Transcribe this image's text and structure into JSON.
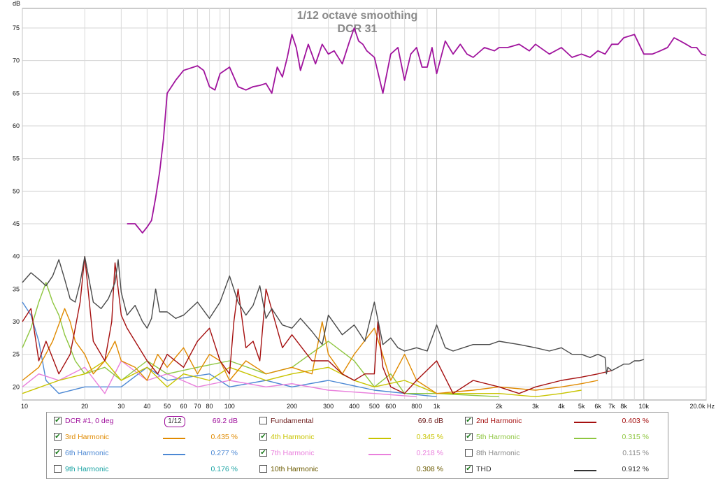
{
  "chart_data": {
    "type": "line",
    "title": "1/12 octave smoothing",
    "subtitle": "DCR 31",
    "ylabel": "dB",
    "xscale": "log",
    "xlim": [
      10,
      20000
    ],
    "ylim": [
      18,
      78
    ],
    "grid": true,
    "y_ticks": [
      "20",
      "25",
      "30",
      "35",
      "40",
      "45",
      "50",
      "55",
      "60",
      "65",
      "70",
      "75"
    ],
    "x_ticks": [
      "10",
      "20",
      "30",
      "40",
      "50",
      "60",
      "70",
      "80",
      "100",
      "200",
      "300",
      "400",
      "500",
      "600",
      "800",
      "1k",
      "2k",
      "3k",
      "4k",
      "5k",
      "6k",
      "7k",
      "8k",
      "10k",
      "20.0k Hz"
    ],
    "x_tick_values": [
      10,
      20,
      30,
      40,
      50,
      60,
      70,
      80,
      100,
      200,
      300,
      400,
      500,
      600,
      800,
      1000,
      2000,
      3000,
      4000,
      5000,
      6000,
      7000,
      8000,
      10000,
      20000
    ],
    "series": [
      {
        "name": "DCR #1, 0 deg",
        "color": "#a0139d",
        "x": [
          10,
          15,
          20,
          25,
          27,
          28,
          29,
          30,
          32,
          35,
          38,
          40,
          42,
          44,
          46,
          48,
          50,
          55,
          60,
          70,
          75,
          80,
          85,
          90,
          100,
          110,
          120,
          130,
          140,
          150,
          160,
          170,
          180,
          190,
          200,
          210,
          220,
          240,
          260,
          280,
          300,
          320,
          350,
          380,
          400,
          420,
          440,
          460,
          500,
          550,
          600,
          650,
          700,
          750,
          800,
          850,
          900,
          950,
          1000,
          1100,
          1200,
          1300,
          1400,
          1500,
          1700,
          1900,
          2000,
          2200,
          2500,
          2800,
          3000,
          3500,
          4000,
          4500,
          5000,
          5500,
          6000,
          6500,
          7000,
          7500,
          8000,
          9000,
          10000,
          11000,
          12000,
          13000,
          14000,
          15000,
          16000,
          17000,
          18000,
          19000,
          20000
        ],
        "y": [
          null,
          null,
          null,
          null,
          null,
          null,
          null,
          null,
          45.0,
          45.0,
          43.6,
          44.5,
          45.5,
          49.0,
          53.0,
          58.0,
          65.0,
          67.0,
          68.5,
          69.2,
          68.5,
          66.0,
          65.5,
          68.0,
          69.0,
          66.0,
          65.5,
          66.0,
          66.2,
          66.5,
          65.0,
          69.0,
          67.5,
          70.5,
          74.0,
          72.0,
          68.5,
          72.5,
          69.5,
          72.5,
          71.0,
          71.5,
          69.5,
          73.0,
          75.0,
          73.0,
          72.5,
          71.5,
          70.5,
          65.0,
          71.0,
          72.0,
          67.0,
          71.0,
          72.0,
          69.0,
          69.0,
          72.0,
          68.0,
          73.0,
          71.0,
          72.5,
          71.0,
          70.5,
          72.0,
          71.5,
          72.0,
          72.0,
          72.5,
          71.5,
          72.5,
          71.0,
          72.0,
          70.5,
          71.0,
          70.5,
          71.5,
          71.0,
          72.5,
          72.5,
          73.5,
          74.0,
          71.0,
          71.0,
          71.5,
          72.0,
          73.5,
          73.0,
          72.5,
          72.0,
          72.0,
          71.0,
          70.8
        ]
      },
      {
        "name": "2nd Harmonic",
        "color": "#a50f0f",
        "x": [
          10,
          11,
          12,
          13,
          15,
          17,
          18,
          19,
          20,
          22,
          25,
          27,
          28,
          29,
          30,
          32,
          35,
          40,
          45,
          50,
          60,
          70,
          80,
          90,
          100,
          105,
          110,
          120,
          130,
          140,
          150,
          180,
          200,
          250,
          300,
          350,
          400,
          450,
          500,
          520,
          550,
          600,
          700,
          800,
          1000,
          1200,
          1500,
          2000,
          2500,
          3000,
          4000,
          5000,
          6000,
          7000
        ],
        "y": [
          30.0,
          32.0,
          24.0,
          27.0,
          22.0,
          25.0,
          29.0,
          33.0,
          40.0,
          27.0,
          24.0,
          30.0,
          39.0,
          35.0,
          31.0,
          29.0,
          27.0,
          24.0,
          22.0,
          25.0,
          23.0,
          27.0,
          29.0,
          24.0,
          22.0,
          30.0,
          35.0,
          26.0,
          27.0,
          24.0,
          35.0,
          26.0,
          28.0,
          24.0,
          24.0,
          22.0,
          21.0,
          22.0,
          22.0,
          30.0,
          23.0,
          20.0,
          19.0,
          21.0,
          24.0,
          19.0,
          21.0,
          20.0,
          19.0,
          20.0,
          21.0,
          21.5,
          22.0,
          22.5
        ]
      },
      {
        "name": "3rd Harmonic",
        "color": "#e08a00",
        "x": [
          10,
          12,
          14,
          16,
          17,
          18,
          20,
          22,
          25,
          28,
          30,
          35,
          40,
          45,
          50,
          60,
          70,
          80,
          90,
          100,
          120,
          150,
          200,
          250,
          280,
          300,
          350,
          400,
          500,
          600,
          700,
          800,
          1000,
          1500,
          2000,
          3000,
          4000,
          5000,
          6000
        ],
        "y": [
          21.0,
          23.0,
          27.0,
          32.0,
          30.0,
          27.0,
          25.0,
          22.0,
          24.0,
          27.0,
          24.0,
          23.0,
          21.0,
          25.0,
          23.0,
          26.0,
          22.0,
          25.0,
          24.0,
          21.0,
          24.0,
          22.0,
          23.0,
          22.0,
          30.0,
          25.0,
          22.0,
          25.0,
          29.0,
          21.0,
          25.0,
          21.0,
          19.0,
          19.5,
          20.0,
          19.5,
          20.0,
          20.5,
          21.0
        ]
      },
      {
        "name": "4th Harmonic",
        "color": "#c8c400",
        "x": [
          10,
          15,
          20,
          25,
          30,
          40,
          50,
          60,
          80,
          100,
          150,
          200,
          300,
          400,
          500,
          700,
          1000,
          2000,
          3000,
          4000,
          5000
        ],
        "y": [
          19.0,
          21.0,
          22.0,
          24.0,
          21.0,
          23.0,
          20.0,
          22.0,
          21.0,
          23.0,
          21.0,
          22.0,
          23.0,
          21.0,
          20.0,
          21.0,
          19.0,
          19.0,
          18.5,
          19.0,
          19.5
        ]
      },
      {
        "name": "5th Harmonic",
        "color": "#8ec63f",
        "x": [
          10,
          11,
          12,
          13,
          14,
          15,
          16,
          17,
          18,
          20,
          25,
          30,
          40,
          50,
          70,
          100,
          150,
          200,
          300,
          400,
          500,
          600,
          700,
          1000,
          2000
        ],
        "y": [
          26.0,
          29.0,
          33.0,
          36.0,
          33.0,
          31.0,
          28.0,
          26.0,
          24.0,
          22.0,
          23.0,
          21.0,
          24.0,
          22.0,
          23.0,
          24.0,
          22.0,
          23.0,
          27.0,
          24.0,
          20.0,
          22.0,
          19.0,
          19.0,
          18.5
        ]
      },
      {
        "name": "6th Harmonic",
        "color": "#4c88d4",
        "x": [
          10,
          11,
          12,
          13,
          15,
          20,
          30,
          40,
          50,
          80,
          100,
          150,
          200,
          300,
          500,
          1000
        ],
        "y": [
          33.0,
          31.0,
          27.0,
          21.0,
          19.0,
          20.0,
          20.0,
          23.0,
          21.0,
          22.0,
          20.0,
          21.0,
          20.0,
          21.0,
          19.5,
          18.5
        ]
      },
      {
        "name": "7th Harmonic",
        "color": "#e97fdc",
        "x": [
          10,
          12,
          15,
          20,
          25,
          30,
          40,
          50,
          70,
          100,
          150,
          200,
          300,
          500,
          800
        ],
        "y": [
          20.0,
          22.0,
          21.0,
          23.0,
          19.0,
          24.0,
          21.0,
          22.0,
          20.0,
          21.0,
          20.0,
          20.5,
          19.5,
          19.0,
          18.5
        ]
      },
      {
        "name": "THD",
        "color": "#4a4a4a",
        "x": [
          10,
          11,
          12,
          13,
          14,
          15,
          16,
          17,
          18,
          19,
          20,
          22,
          24,
          26,
          28,
          29,
          30,
          32,
          35,
          38,
          40,
          42,
          44,
          46,
          50,
          55,
          60,
          70,
          80,
          90,
          100,
          110,
          120,
          130,
          140,
          150,
          160,
          180,
          200,
          220,
          250,
          280,
          300,
          350,
          400,
          450,
          500,
          550,
          600,
          650,
          700,
          800,
          900,
          1000,
          1100,
          1200,
          1500,
          1800,
          2000,
          2500,
          3000,
          3500,
          4000,
          4500,
          5000,
          5500,
          6000,
          6500,
          6600,
          6700,
          7000,
          7500,
          8000,
          8500,
          9000,
          9500,
          10000
        ],
        "y": [
          36.0,
          37.5,
          36.5,
          35.5,
          37.0,
          39.5,
          36.5,
          33.5,
          33.0,
          36.0,
          40.0,
          33.0,
          32.0,
          33.5,
          36.0,
          39.5,
          34.5,
          31.0,
          32.5,
          30.0,
          29.0,
          30.5,
          35.0,
          31.5,
          31.5,
          30.5,
          31.0,
          33.0,
          30.5,
          33.0,
          37.0,
          33.0,
          31.0,
          32.5,
          35.5,
          30.5,
          32.0,
          29.5,
          29.0,
          30.5,
          28.5,
          26.5,
          31.0,
          28.0,
          29.5,
          27.0,
          33.0,
          26.5,
          27.5,
          26.0,
          25.5,
          26.0,
          25.5,
          29.5,
          26.0,
          25.5,
          26.5,
          26.5,
          27.0,
          26.5,
          26.0,
          25.5,
          26.0,
          25.0,
          25.0,
          24.5,
          25.0,
          24.5,
          22.0,
          23.0,
          22.5,
          23.0,
          23.5,
          23.5,
          24.0,
          24.0,
          24.2
        ]
      }
    ]
  },
  "legend": {
    "rows": [
      [
        {
          "checked": true,
          "label": "DCR #1, 0 deg",
          "color": "#a0139d",
          "swatch": "smoothing",
          "smoothing_label": "1/12",
          "value": "69.2 dB"
        },
        {
          "checked": false,
          "label": "Fundamental",
          "color": "#6b1a1a",
          "swatch": "none",
          "value": "69.6 dB"
        },
        {
          "checked": true,
          "label": "2nd Harmonic",
          "color": "#a50f0f",
          "swatch": "line",
          "value": "0.403 %"
        }
      ],
      [
        {
          "checked": true,
          "label": "3rd Harmonic",
          "color": "#e08a00",
          "swatch": "line",
          "value": "0.435 %"
        },
        {
          "checked": true,
          "label": "4th Harmonic",
          "color": "#c8c400",
          "swatch": "line",
          "value": "0.345 %"
        },
        {
          "checked": true,
          "label": "5th Harmonic",
          "color": "#8ec63f",
          "swatch": "line",
          "value": "0.315 %"
        }
      ],
      [
        {
          "checked": true,
          "label": "6th Harmonic",
          "color": "#4c88d4",
          "swatch": "line",
          "value": "0.277 %"
        },
        {
          "checked": true,
          "label": "7th Harmonic",
          "color": "#e97fdc",
          "swatch": "line",
          "value": "0.218 %"
        },
        {
          "checked": false,
          "label": "8th Harmonic",
          "color": "#8a8a8a",
          "swatch": "none",
          "value": "0.115 %"
        }
      ],
      [
        {
          "checked": false,
          "label": "9th Harmonic",
          "color": "#1aa3a3",
          "swatch": "none",
          "value": "0.176 %"
        },
        {
          "checked": false,
          "label": "10th Harmonic",
          "color": "#6b5a00",
          "swatch": "none",
          "value": "0.308 %"
        },
        {
          "checked": true,
          "label": "THD",
          "color": "#333333",
          "swatch": "line",
          "value": "0.912 %"
        }
      ]
    ]
  }
}
